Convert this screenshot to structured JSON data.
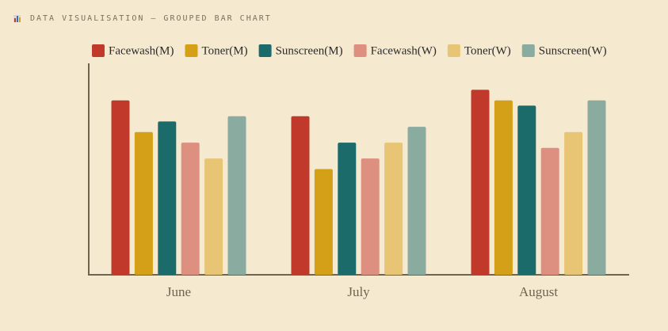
{
  "chart_data": {
    "type": "grouped_bar",
    "title": "DATA VISUALISATION — GROUPED BAR CHART",
    "categories": [
      "June",
      "July",
      "August"
    ],
    "series": [
      {
        "name": "Facewash(M)",
        "color": "#c0392b",
        "values": [
          33,
          30,
          35
        ]
      },
      {
        "name": "Toner(M)",
        "color": "#d4a017",
        "values": [
          27,
          20,
          33
        ]
      },
      {
        "name": "Sunscreen(M)",
        "color": "#1b6b6b",
        "values": [
          29,
          25,
          32
        ]
      },
      {
        "name": "Facewash(W)",
        "color": "#dd9080",
        "values": [
          25,
          22,
          24
        ]
      },
      {
        "name": "Toner(W)",
        "color": "#e8c574",
        "values": [
          22,
          25,
          27
        ]
      },
      {
        "name": "Sunscreen(W)",
        "color": "#8aab9f",
        "values": [
          30,
          28,
          33
        ]
      }
    ],
    "ylim": [
      0,
      40
    ],
    "grid": false
  }
}
